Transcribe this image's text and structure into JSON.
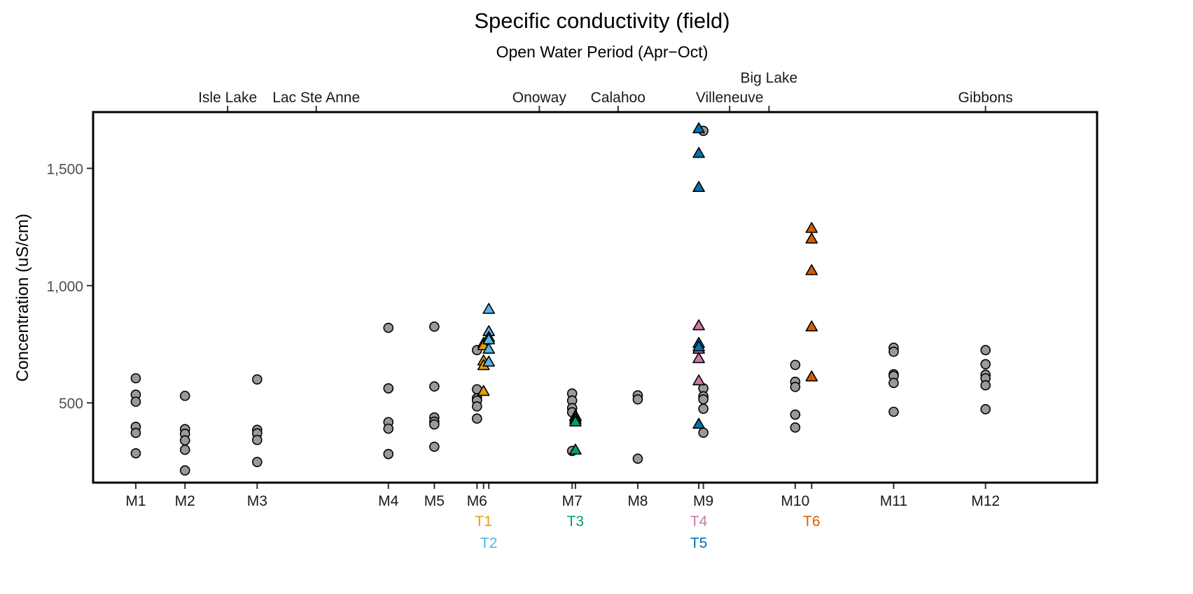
{
  "chart_data": {
    "type": "scatter",
    "title": "Specific conductivity (field)",
    "subtitle": "Open Water Period (Apr−Oct)",
    "ylabel": "Concentration (uS/cm)",
    "ylim": [
      160,
      1740
    ],
    "xlim": [
      0,
      153
    ],
    "grid": false,
    "y_ticks": [
      {
        "value": 500,
        "label": "500"
      },
      {
        "value": 1000,
        "label": "1,000"
      },
      {
        "value": 1500,
        "label": "1,500"
      }
    ],
    "top_labels": [
      {
        "x": 20.5,
        "label": "Isle Lake"
      },
      {
        "x": 34.0,
        "label": "Lac Ste Anne"
      },
      {
        "x": 68.0,
        "label": "Onoway"
      },
      {
        "x": 80.0,
        "label": "Calahoo"
      },
      {
        "x": 97.0,
        "label": "Villeneuve"
      },
      {
        "x": 103.0,
        "label": "Big Lake",
        "row": 2
      },
      {
        "x": 136.0,
        "label": "Gibbons"
      }
    ],
    "main_stem_color": "#999999",
    "sites": [
      {
        "name": "M1",
        "x": 6.5,
        "values": [
          605,
          535,
          505,
          398,
          372,
          285
        ]
      },
      {
        "name": "M2",
        "x": 14.0,
        "values": [
          530,
          388,
          368,
          340,
          300,
          212
        ]
      },
      {
        "name": "M3",
        "x": 25.0,
        "values": [
          600,
          385,
          370,
          342,
          248
        ]
      },
      {
        "name": "M4",
        "x": 45.0,
        "values": [
          820,
          562,
          418,
          390,
          282
        ]
      },
      {
        "name": "M5",
        "x": 52.0,
        "values": [
          825,
          570,
          438,
          420,
          408,
          313
        ]
      },
      {
        "name": "M6",
        "x": 58.5,
        "values": [
          725,
          558,
          520,
          510,
          485,
          433
        ]
      },
      {
        "name": "M7",
        "x": 73.0,
        "values": [
          540,
          510,
          478,
          460,
          295
        ]
      },
      {
        "name": "M8",
        "x": 83.0,
        "values": [
          532,
          515,
          262
        ]
      },
      {
        "name": "M9",
        "x": 93.0,
        "values": [
          1660,
          562,
          528,
          515,
          475,
          373
        ]
      },
      {
        "name": "M10",
        "x": 107.0,
        "values": [
          662,
          590,
          568,
          450,
          395
        ]
      },
      {
        "name": "M11",
        "x": 122.0,
        "values": [
          735,
          718,
          622,
          615,
          585,
          462
        ]
      },
      {
        "name": "M12",
        "x": 136.0,
        "values": [
          725,
          665,
          620,
          605,
          575,
          473
        ]
      }
    ],
    "tributaries": [
      {
        "name": "T1",
        "x": 59.5,
        "color": "#E69F00",
        "values": [
          755,
          745,
          680,
          660,
          550
        ]
      },
      {
        "name": "T2",
        "x": 60.3,
        "color": "#56B4E9",
        "values": [
          900,
          805,
          780,
          770,
          730,
          675
        ]
      },
      {
        "name": "T3",
        "x": 73.5,
        "color": "#009E73",
        "values": [
          445,
          440,
          430,
          420,
          300
        ]
      },
      {
        "name": "T4",
        "x": 92.3,
        "color": "#CC79A7",
        "values": [
          830,
          730,
          690,
          595
        ]
      },
      {
        "name": "T5",
        "x": 92.3,
        "color": "#0072B2",
        "values": [
          1670,
          1565,
          1420,
          755,
          740,
          410
        ]
      },
      {
        "name": "T6",
        "x": 109.5,
        "color": "#D55E00",
        "values": [
          1245,
          1200,
          1065,
          825,
          612
        ]
      }
    ]
  }
}
